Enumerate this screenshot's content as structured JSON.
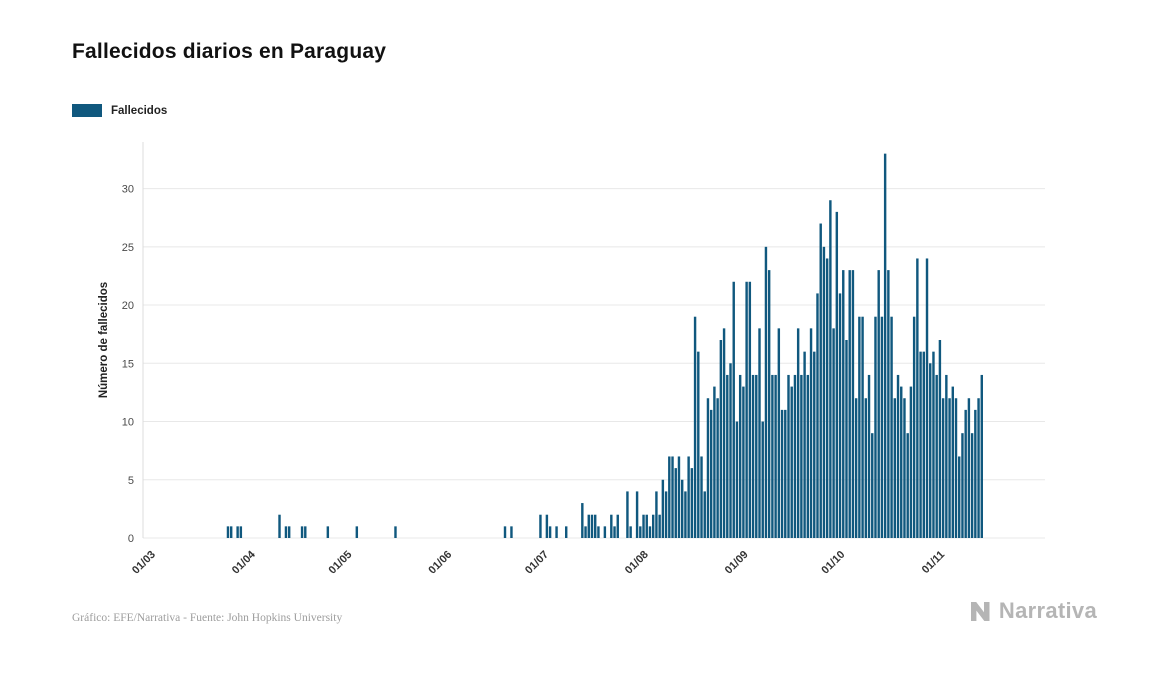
{
  "title": "Fallecidos diarios en Paraguay",
  "legend": {
    "label": "Fallecidos",
    "color": "#10587e"
  },
  "footer": {
    "credit": "Gráfico: EFE/Narrativa - Fuente: John Hopkins University",
    "brand": "Narrativa"
  },
  "chart_data": {
    "type": "bar",
    "title": "Fallecidos diarios en Paraguay",
    "xlabel": "",
    "ylabel": "Número de fallecidos",
    "ylim": [
      0,
      34
    ],
    "yticks": [
      0,
      5,
      10,
      15,
      20,
      25,
      30
    ],
    "xtick_labels": [
      "01/03",
      "01/04",
      "01/05",
      "01/06",
      "01/07",
      "01/08",
      "01/09",
      "01/10",
      "01/11"
    ],
    "grid": "horizontal",
    "legend_position": "top-left",
    "bar_color": "#10587e",
    "series": [
      {
        "name": "Fallecidos",
        "color": "#10587e",
        "values_by_month": [
          {
            "month": "03",
            "values": [
              0,
              0,
              0,
              0,
              0,
              0,
              0,
              0,
              0,
              0,
              0,
              0,
              0,
              0,
              0,
              0,
              0,
              0,
              0,
              0,
              0,
              0,
              1,
              1,
              0,
              1,
              1,
              0,
              0,
              0,
              0
            ]
          },
          {
            "month": "04",
            "values": [
              0,
              0,
              0,
              0,
              0,
              0,
              0,
              2,
              0,
              1,
              1,
              0,
              0,
              0,
              1,
              1,
              0,
              0,
              0,
              0,
              0,
              0,
              1,
              0,
              0,
              0,
              0,
              0,
              0,
              0
            ]
          },
          {
            "month": "05",
            "values": [
              0,
              1,
              0,
              0,
              0,
              0,
              0,
              0,
              0,
              0,
              0,
              0,
              0,
              1,
              0,
              0,
              0,
              0,
              0,
              0,
              0,
              0,
              0,
              0,
              0,
              0,
              0,
              0,
              0,
              0,
              0
            ]
          },
          {
            "month": "06",
            "values": [
              0,
              0,
              0,
              0,
              0,
              0,
              0,
              0,
              0,
              0,
              0,
              0,
              0,
              0,
              0,
              0,
              1,
              0,
              1,
              0,
              0,
              0,
              0,
              0,
              0,
              0,
              0,
              2,
              0,
              2
            ]
          },
          {
            "month": "07",
            "values": [
              1,
              0,
              1,
              0,
              0,
              1,
              0,
              0,
              0,
              0,
              3,
              1,
              2,
              2,
              2,
              1,
              0,
              1,
              0,
              2,
              1,
              2,
              0,
              0,
              4,
              1,
              0,
              4,
              1,
              2,
              2
            ]
          },
          {
            "month": "08",
            "values": [
              1,
              2,
              4,
              2,
              5,
              4,
              7,
              7,
              6,
              7,
              5,
              4,
              7,
              6,
              19,
              16,
              7,
              4,
              12,
              11,
              13,
              12,
              17,
              18,
              14,
              15,
              22,
              10,
              14,
              13,
              22
            ]
          },
          {
            "month": "09",
            "values": [
              22,
              14,
              14,
              18,
              10,
              25,
              23,
              14,
              14,
              18,
              11,
              11,
              14,
              13,
              14,
              18,
              14,
              16,
              14,
              18,
              16,
              21,
              27,
              25,
              24,
              29,
              18,
              28,
              21,
              23
            ]
          },
          {
            "month": "10",
            "values": [
              17,
              23,
              23,
              12,
              19,
              19,
              12,
              14,
              9,
              19,
              23,
              19,
              33,
              23,
              19,
              12,
              14,
              13,
              12,
              9,
              13,
              19,
              24,
              16,
              16,
              24,
              15,
              16,
              14,
              17,
              12
            ]
          },
          {
            "month": "11",
            "values": [
              14,
              12,
              13,
              12,
              7,
              9,
              11,
              12,
              9,
              11,
              12,
              14
            ]
          }
        ]
      }
    ]
  }
}
